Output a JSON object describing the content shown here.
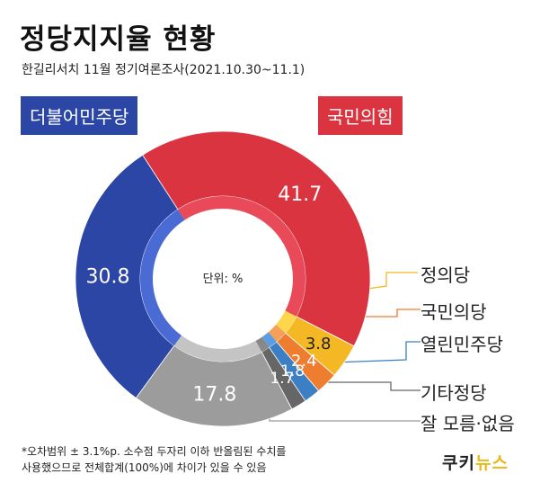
{
  "title": "정당지지율 현황",
  "subtitle": "한길리서치 11월 정기여론조사(2021.10.30~11.1)",
  "unit_label": "단위: %",
  "footnote_line1": "*오차범위 ± 3.1%p. 소수점 두자리 이하 반올림된 수치를",
  "footnote_line2": "사용했으므로 전체합계(100%)에 차이가 있을 수 있음",
  "logo_part1": "쿠키",
  "logo_part2": "뉴스",
  "chart_data": {
    "type": "pie",
    "variant": "donut",
    "unit": "%",
    "categories": [
      "국민의힘",
      "정의당",
      "국민의당",
      "열린민주당",
      "기타정당",
      "잘 모름·없음",
      "더불어민주당"
    ],
    "values": [
      41.7,
      3.8,
      2.4,
      1.8,
      1.7,
      17.8,
      30.8
    ],
    "value_labels": [
      "41.7",
      "3.8",
      "2.4",
      "1.8",
      "1.7",
      "17.8",
      "30.8"
    ],
    "colors": [
      "#d9343f",
      "#f3b823",
      "#ee7d30",
      "#3c7fc4",
      "#666666",
      "#9c9c9c",
      "#2c46a6"
    ],
    "inner_colors": [
      "#e84a5a",
      "#fdd64b",
      "#f5a05a",
      "#5b9de0",
      "#888888",
      "#c4c4c4",
      "#4a6ad4"
    ],
    "label_colors": [
      "#ffffff",
      "#222222",
      "#ffffff",
      "#ffffff",
      "#ffffff",
      "#ffffff",
      "#ffffff"
    ],
    "legend_pos": "callouts"
  }
}
